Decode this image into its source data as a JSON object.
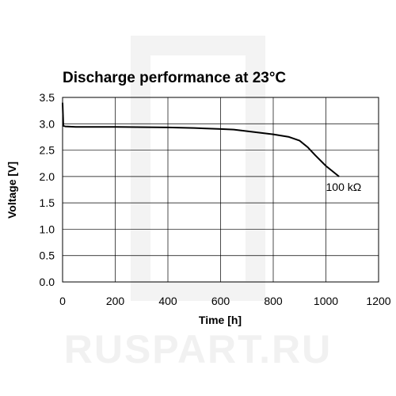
{
  "watermark": {
    "text": "RUSPART.RU",
    "color": "#f1f1f1"
  },
  "chart_data": {
    "type": "line",
    "title": "Discharge performance at 23°C",
    "xlabel": "Time [h]",
    "ylabel": "Voltage [V]",
    "xlim": [
      0,
      1200
    ],
    "ylim": [
      0.0,
      3.5
    ],
    "xticks": [
      "0",
      "200",
      "400",
      "600",
      "800",
      "1000",
      "1200"
    ],
    "yticks": [
      "0.0",
      "0.5",
      "1.0",
      "1.5",
      "2.0",
      "2.5",
      "3.0",
      "3.5"
    ],
    "grid": true,
    "series": [
      {
        "name": "100 kΩ",
        "x": [
          0,
          3,
          10,
          50,
          200,
          400,
          500,
          600,
          650,
          700,
          800,
          860,
          900,
          930,
          960,
          1000,
          1050
        ],
        "y": [
          3.4,
          2.96,
          2.95,
          2.94,
          2.94,
          2.93,
          2.92,
          2.9,
          2.89,
          2.86,
          2.8,
          2.75,
          2.68,
          2.56,
          2.4,
          2.2,
          2.0
        ]
      }
    ],
    "annotations": [
      {
        "text": "100 kΩ",
        "x": 1000,
        "y": 1.8
      }
    ]
  }
}
